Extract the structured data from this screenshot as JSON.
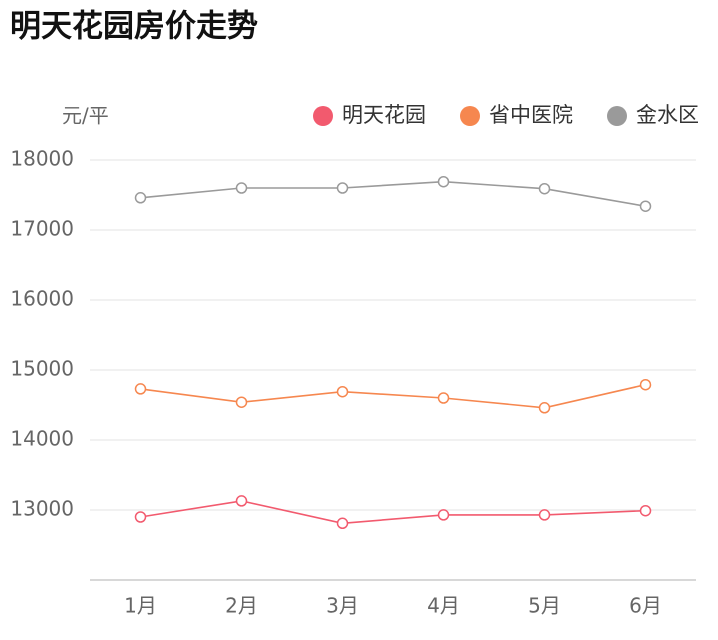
{
  "chart_data": {
    "type": "line",
    "title": "明天花园房价走势",
    "y_label": "元/平",
    "categories": [
      "1月",
      "2月",
      "3月",
      "4月",
      "5月",
      "6月"
    ],
    "series": [
      {
        "name": "明天花园",
        "color": "#f25a6e",
        "values": [
          12900,
          13130,
          12810,
          12930,
          12930,
          12990
        ]
      },
      {
        "name": "省中医院",
        "color": "#f6874f",
        "values": [
          14730,
          14540,
          14690,
          14600,
          14460,
          14790
        ]
      },
      {
        "name": "金水区",
        "color": "#9a9a9a",
        "values": [
          17460,
          17600,
          17600,
          17690,
          17590,
          17340
        ]
      }
    ],
    "ylim": [
      12000,
      18000
    ],
    "yticks": [
      13000,
      14000,
      15000,
      16000,
      17000,
      18000
    ],
    "grid": true
  }
}
